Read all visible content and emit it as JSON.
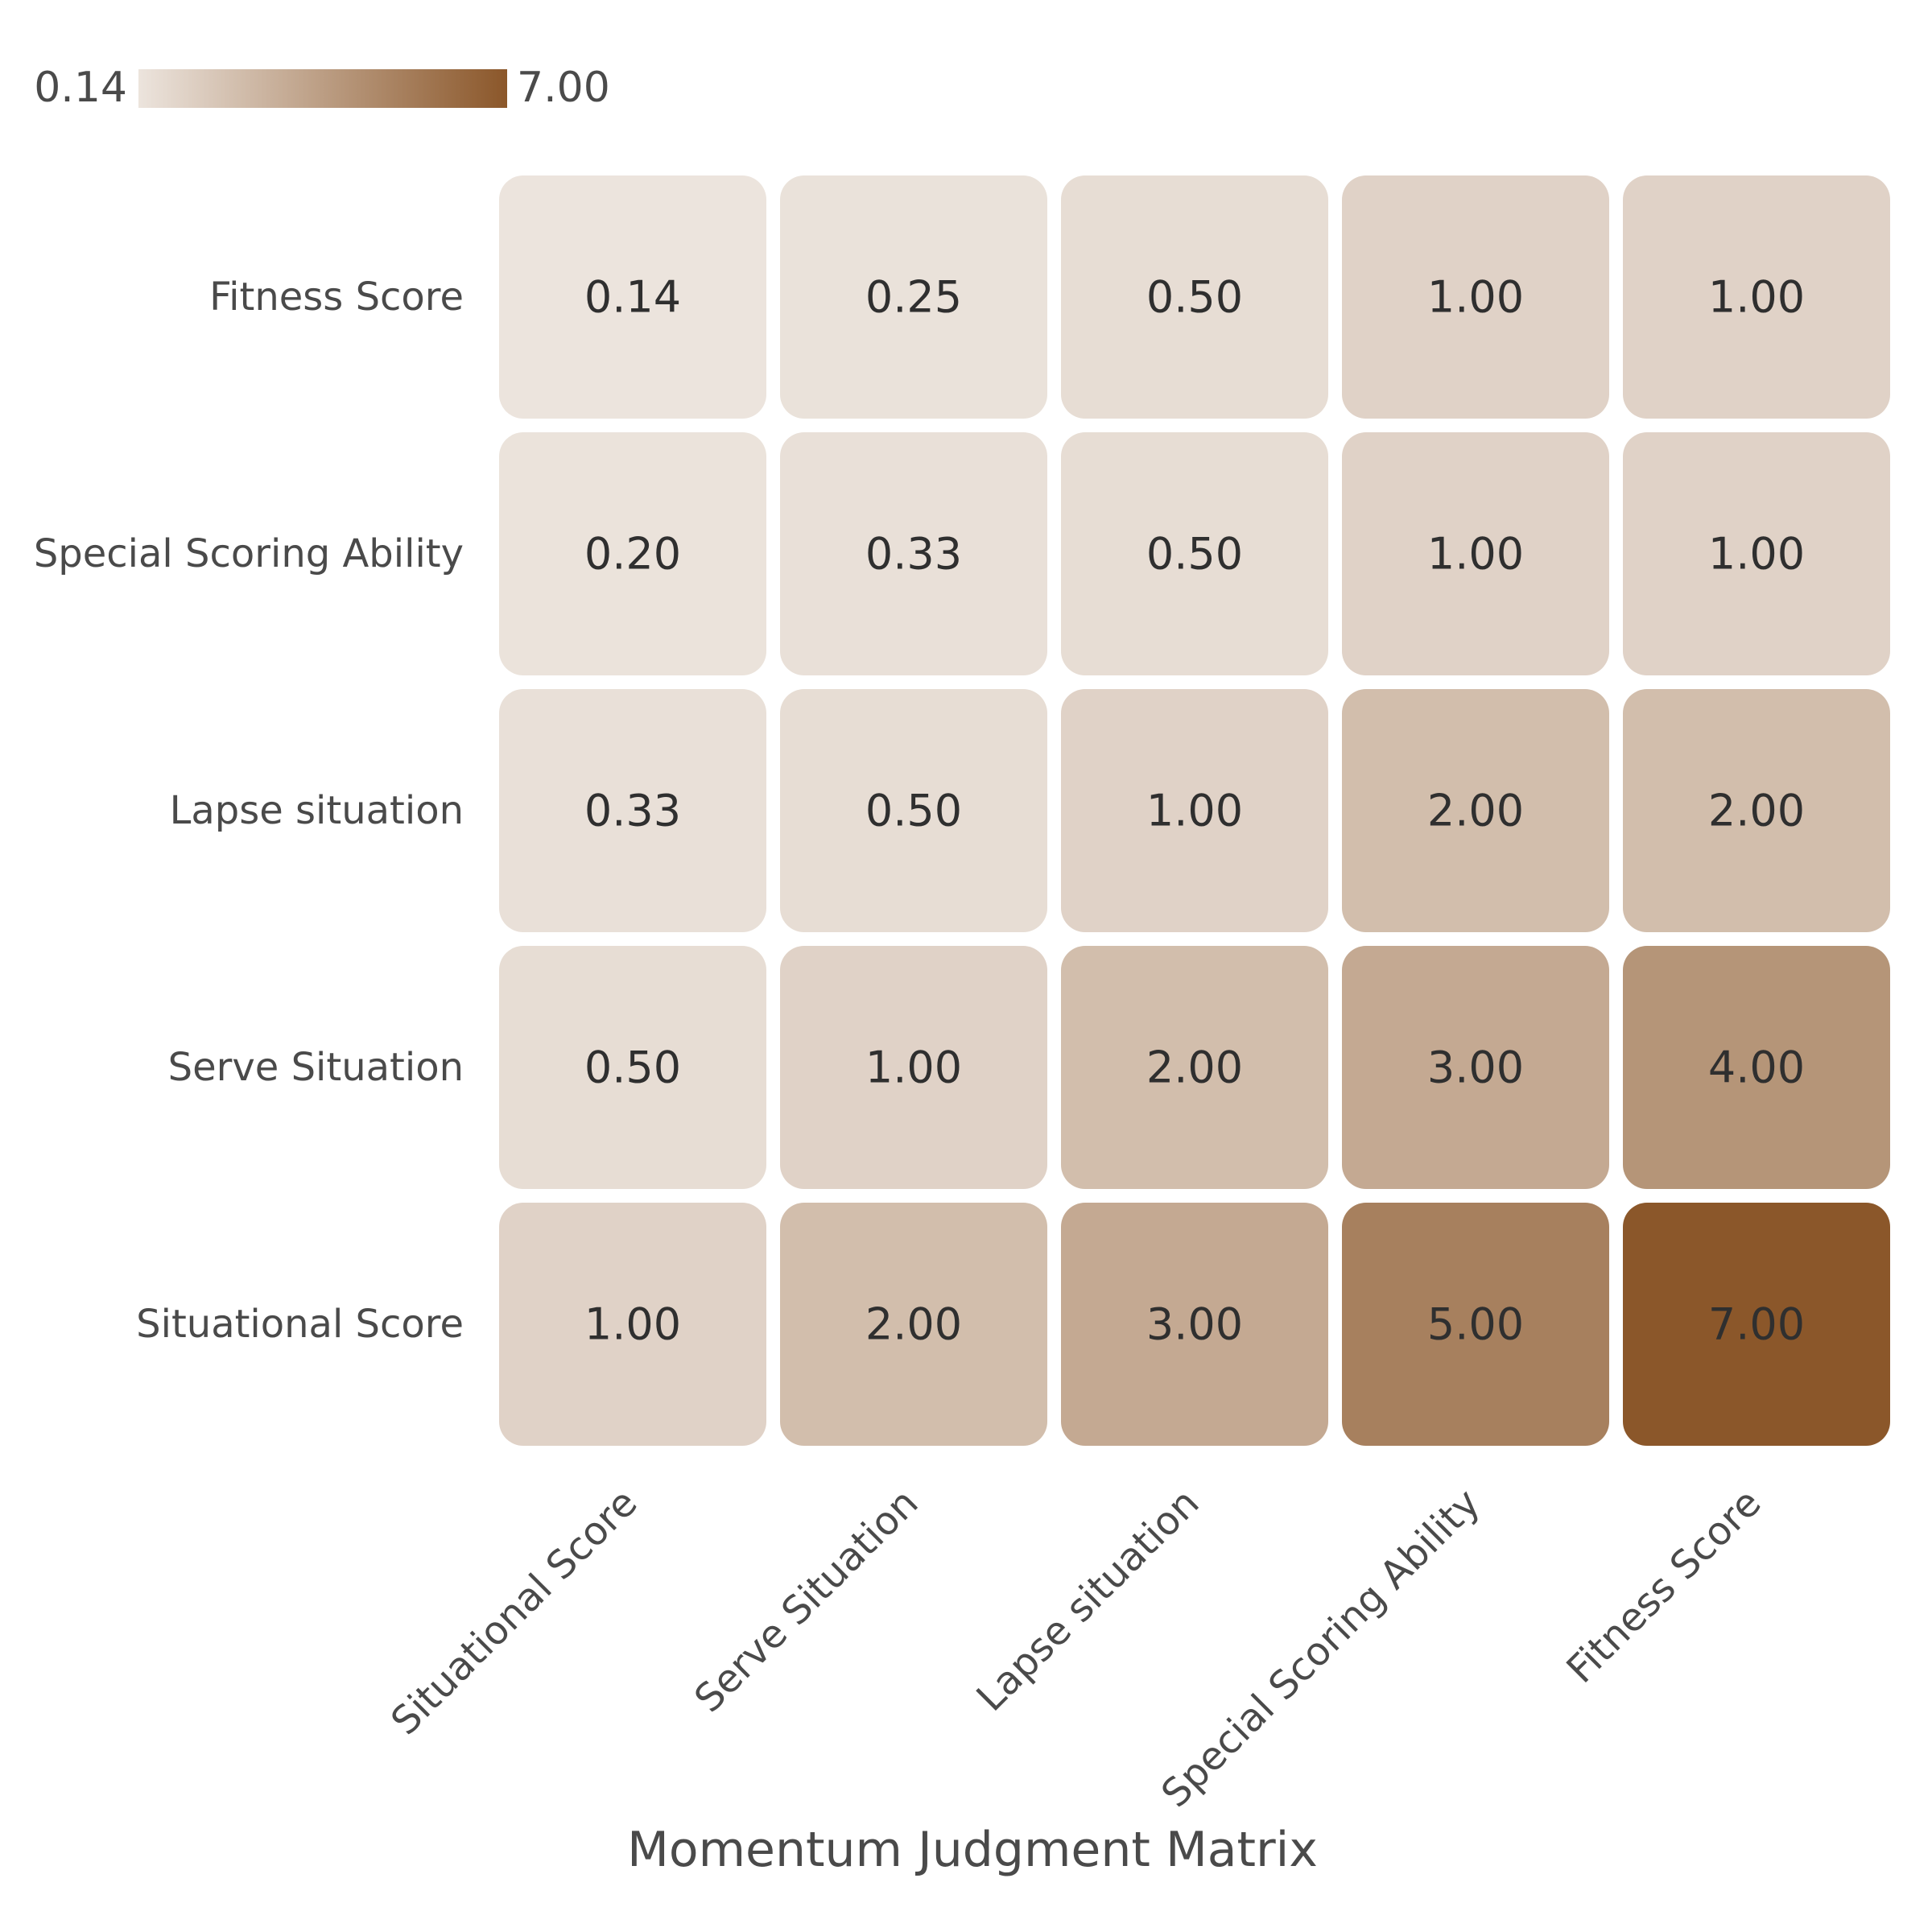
{
  "chart_data": {
    "type": "heatmap",
    "title": "",
    "xlabel": "Momentum Judgment Matrix",
    "ylabel": "",
    "x_categories": [
      "Situational Score",
      "Serve Situation",
      "Lapse situation",
      "Special Scoring Ability",
      "Fitness Score"
    ],
    "y_categories": [
      "Fitness Score",
      "Special Scoring Ability",
      "Lapse situation",
      "Serve Situation",
      "Situational Score"
    ],
    "values": [
      [
        0.14,
        0.25,
        0.5,
        1.0,
        1.0
      ],
      [
        0.2,
        0.33,
        0.5,
        1.0,
        1.0
      ],
      [
        0.33,
        0.5,
        1.0,
        2.0,
        2.0
      ],
      [
        0.5,
        1.0,
        2.0,
        3.0,
        4.0
      ],
      [
        1.0,
        2.0,
        3.0,
        5.0,
        7.0
      ]
    ],
    "value_labels": [
      [
        "0.14",
        "0.25",
        "0.50",
        "1.00",
        "1.00"
      ],
      [
        "0.20",
        "0.33",
        "0.50",
        "1.00",
        "1.00"
      ],
      [
        "0.33",
        "0.50",
        "1.00",
        "2.00",
        "2.00"
      ],
      [
        "0.50",
        "1.00",
        "2.00",
        "3.00",
        "4.00"
      ],
      [
        "1.00",
        "2.00",
        "3.00",
        "5.00",
        "7.00"
      ]
    ],
    "colorbar": {
      "min": 0.14,
      "max": 7.0,
      "min_label": "0.14",
      "max_label": "7.00",
      "color_low": "#ece4dd",
      "color_high": "#8b572a",
      "placement": "top-left"
    },
    "grid": false
  }
}
